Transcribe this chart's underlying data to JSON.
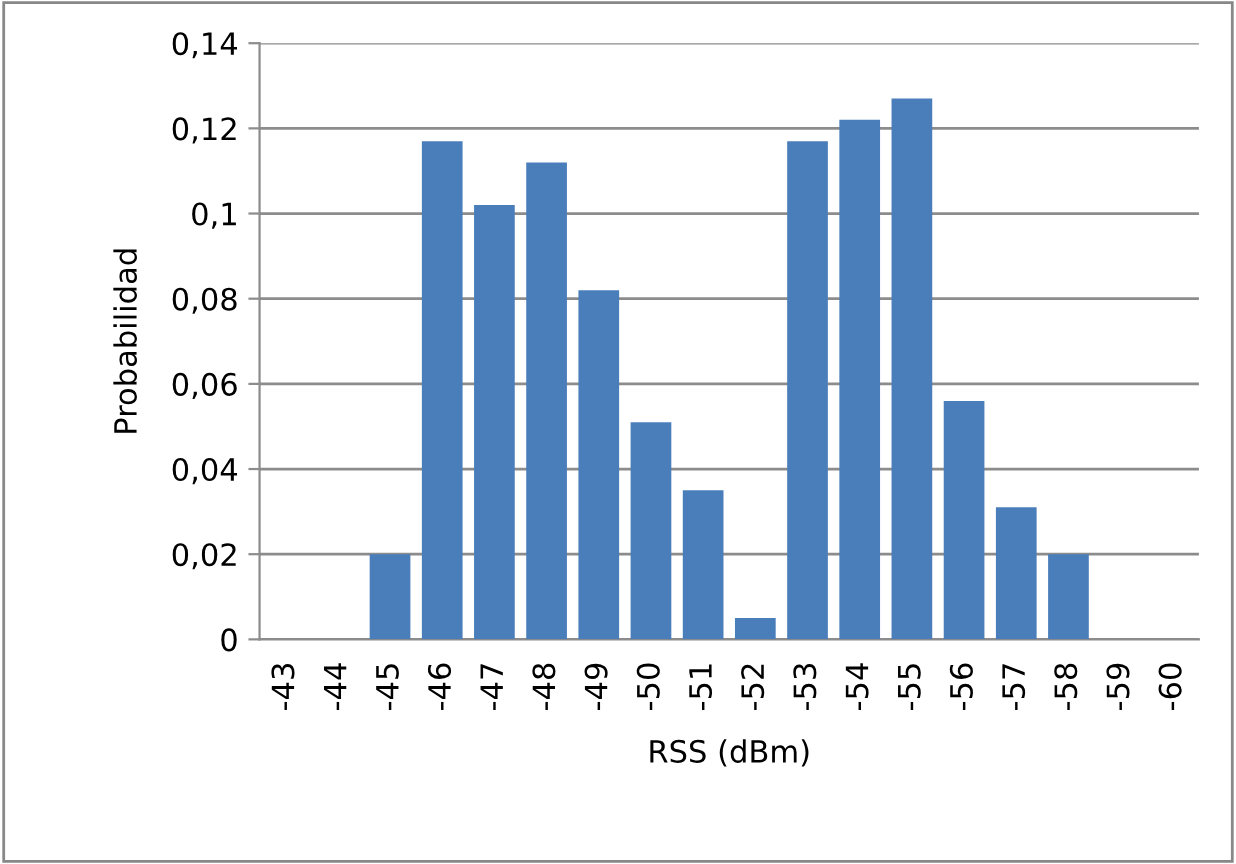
{
  "chart_data": {
    "type": "bar",
    "xlabel": "RSS (dBm)",
    "ylabel": "Probabilidad",
    "categories": [
      "-43",
      "-44",
      "-45",
      "-46",
      "-47",
      "-48",
      "-49",
      "-50",
      "-51",
      "-52",
      "-53",
      "-54",
      "-55",
      "-56",
      "-57",
      "-58",
      "-59",
      "-60"
    ],
    "values": [
      0,
      0,
      0.02,
      0.117,
      0.102,
      0.112,
      0.082,
      0.051,
      0.035,
      0.005,
      0.117,
      0.122,
      0.127,
      0.056,
      0.031,
      0.02,
      0,
      0
    ],
    "color": "#4a7ebb",
    "ylim": [
      0,
      0.14
    ],
    "yticks": [
      0,
      {
        "value": 0.02,
        "label": "0,02"
      },
      {
        "value": 0.04,
        "label": "0,04"
      },
      {
        "value": 0.06,
        "label": "0,06"
      },
      {
        "value": 0.08,
        "label": "0,08"
      },
      {
        "value": 0.1,
        "label": "0,1"
      },
      {
        "value": 0.12,
        "label": "0,12"
      },
      {
        "value": 0.14,
        "label": "0,14"
      }
    ],
    "grid": "y"
  }
}
